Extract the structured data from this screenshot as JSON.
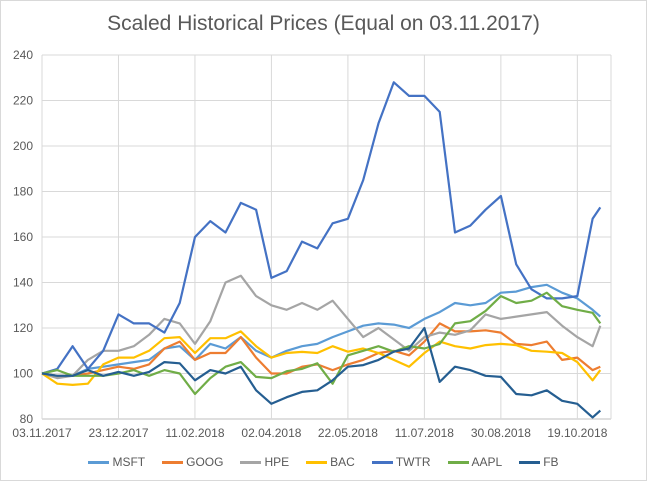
{
  "chart_data": {
    "type": "line",
    "title": "Scaled Historical Prices (Equal on 03.11.2017)",
    "xlabel": "",
    "ylabel": "",
    "x_unit": "days since 03.11.2017",
    "xlim": [
      0,
      372
    ],
    "ylim": [
      80,
      240
    ],
    "y_ticks": [
      80,
      100,
      120,
      140,
      160,
      180,
      200,
      220,
      240
    ],
    "x_ticks": [
      {
        "day": 0,
        "label": "03.11.2017"
      },
      {
        "day": 50,
        "label": "23.12.2017"
      },
      {
        "day": 100,
        "label": "11.02.2018"
      },
      {
        "day": 150,
        "label": "02.04.2018"
      },
      {
        "day": 200,
        "label": "22.05.2018"
      },
      {
        "day": 250,
        "label": "11.07.2018"
      },
      {
        "day": 300,
        "label": "30.08.2018"
      },
      {
        "day": 350,
        "label": "19.10.2018"
      }
    ],
    "grid": true,
    "legend_position": "bottom",
    "x": [
      0,
      10,
      20,
      30,
      40,
      50,
      60,
      70,
      80,
      90,
      100,
      110,
      120,
      130,
      140,
      150,
      160,
      170,
      180,
      190,
      200,
      210,
      220,
      230,
      240,
      250,
      260,
      270,
      280,
      290,
      300,
      310,
      320,
      330,
      340,
      350,
      360,
      365
    ],
    "series": [
      {
        "name": "MSFT",
        "color": "#5B9BD5",
        "values": [
          100,
          99,
          99,
          102,
          103,
          104,
          105,
          106,
          111,
          112,
          106,
          113,
          111,
          116,
          110,
          107,
          110,
          112,
          113,
          116,
          118.5,
          121,
          122,
          121.5,
          120,
          124,
          127,
          131,
          130,
          131,
          135.5,
          136,
          138,
          139,
          135.5,
          133,
          128,
          125
        ]
      },
      {
        "name": "GOOG",
        "color": "#ED7D31",
        "values": [
          100,
          99,
          99,
          100,
          101.5,
          103,
          102,
          104,
          111,
          114,
          106,
          109,
          109,
          116,
          107,
          100,
          100,
          103,
          104,
          101.5,
          104,
          106,
          109,
          110,
          108,
          114,
          122,
          118.5,
          118.5,
          119,
          118,
          113,
          112.5,
          114,
          106,
          107,
          101.5,
          103
        ]
      },
      {
        "name": "HPE",
        "color": "#A5A5A5",
        "values": [
          100,
          98,
          99,
          106,
          110,
          110,
          112,
          117,
          124,
          122,
          113,
          123,
          140,
          143,
          134,
          130,
          128,
          131,
          128,
          132,
          124,
          116,
          120,
          115,
          110,
          116,
          118,
          117,
          119,
          126,
          124,
          125,
          126,
          127,
          121,
          116,
          112,
          121
        ]
      },
      {
        "name": "BAC",
        "color": "#FFC000",
        "values": [
          100,
          95.5,
          95,
          95.5,
          104,
          107,
          107,
          110,
          115.5,
          116,
          109,
          115.5,
          115.5,
          118.5,
          112,
          107,
          109,
          109.5,
          109,
          112,
          109.6,
          111,
          109,
          106,
          103,
          109,
          114,
          112,
          111,
          112.5,
          113,
          112.5,
          110,
          109.6,
          109,
          105,
          97,
          101.5
        ]
      },
      {
        "name": "TWTR",
        "color": "#4472C4",
        "values": [
          100,
          102,
          112,
          102,
          110,
          126,
          122,
          122,
          118,
          131,
          160,
          167,
          162,
          175,
          172,
          142,
          145,
          158,
          155,
          166,
          168,
          185,
          210,
          228,
          222,
          222,
          215,
          162,
          165,
          172,
          178,
          148,
          137,
          133,
          133,
          134,
          168,
          173
        ]
      },
      {
        "name": "AAPL",
        "color": "#70AD47",
        "values": [
          100,
          101.5,
          99,
          99,
          99,
          100,
          101.5,
          99,
          101.5,
          100,
          91,
          98,
          103,
          105,
          98.5,
          98,
          101,
          102,
          104.5,
          95.5,
          108,
          110,
          112,
          109.6,
          112,
          111,
          113,
          122,
          123,
          127.5,
          134,
          131,
          132,
          135.5,
          129.6,
          128,
          126.7,
          122
        ]
      },
      {
        "name": "FB",
        "color": "#255E91",
        "values": [
          100,
          99,
          99,
          101.5,
          99,
          100.7,
          99,
          100.7,
          105,
          104.5,
          97,
          101.5,
          100,
          103,
          92.6,
          86.7,
          89.6,
          91.9,
          92.6,
          97,
          103,
          103.7,
          106,
          109.6,
          111,
          120,
          96.3,
          103,
          101.5,
          99,
          98.5,
          91,
          90.4,
          92.6,
          88,
          86.7,
          80.7,
          83.7
        ]
      }
    ]
  }
}
